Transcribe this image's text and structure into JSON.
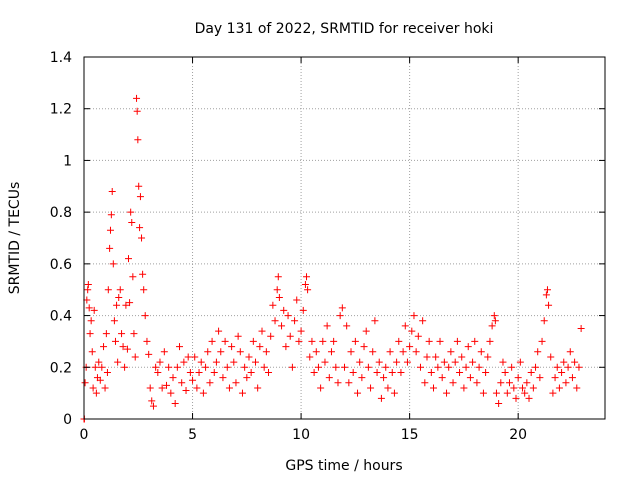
{
  "chart_data": {
    "type": "scatter",
    "title": "Day 131 of 2022, SRMTID for receiver hoki",
    "xlabel": "GPS time / hours",
    "ylabel": "SRMTID / TECUs",
    "xlim": [
      0,
      24
    ],
    "ylim": [
      0,
      1.4
    ],
    "xticks": [
      0,
      5,
      10,
      15,
      20
    ],
    "xtick_labels": [
      "0",
      "5",
      "10",
      "15",
      "20"
    ],
    "yticks": [
      0,
      0.2,
      0.4,
      0.6,
      0.8,
      1.0,
      1.2,
      1.4
    ],
    "ytick_labels": [
      "0",
      "0.2",
      "0.4",
      "0.6",
      "0.8",
      "1",
      "1.2",
      "1.4"
    ],
    "grid": true,
    "marker": "+",
    "color": "#ff0000",
    "series": [
      {
        "name": "SRMTID",
        "points": [
          [
            0.0,
            0.0
          ],
          [
            0.02,
            0.0
          ],
          [
            0.05,
            0.14
          ],
          [
            0.1,
            0.2
          ],
          [
            0.13,
            0.46
          ],
          [
            0.17,
            0.5
          ],
          [
            0.2,
            0.52
          ],
          [
            0.24,
            0.43
          ],
          [
            0.28,
            0.33
          ],
          [
            0.33,
            0.38
          ],
          [
            0.38,
            0.26
          ],
          [
            0.42,
            0.12
          ],
          [
            0.47,
            0.42
          ],
          [
            0.52,
            0.2
          ],
          [
            0.57,
            0.1
          ],
          [
            0.62,
            0.16
          ],
          [
            0.68,
            0.22
          ],
          [
            0.75,
            0.15
          ],
          [
            0.82,
            0.2
          ],
          [
            0.9,
            0.28
          ],
          [
            0.97,
            0.12
          ],
          [
            1.03,
            0.33
          ],
          [
            1.08,
            0.18
          ],
          [
            1.12,
            0.5
          ],
          [
            1.18,
            0.66
          ],
          [
            1.22,
            0.73
          ],
          [
            1.26,
            0.79
          ],
          [
            1.3,
            0.88
          ],
          [
            1.35,
            0.6
          ],
          [
            1.4,
            0.38
          ],
          [
            1.45,
            0.3
          ],
          [
            1.5,
            0.44
          ],
          [
            1.55,
            0.22
          ],
          [
            1.6,
            0.47
          ],
          [
            1.67,
            0.5
          ],
          [
            1.73,
            0.33
          ],
          [
            1.8,
            0.28
          ],
          [
            1.87,
            0.2
          ],
          [
            1.93,
            0.44
          ],
          [
            2.0,
            0.27
          ],
          [
            2.05,
            0.62
          ],
          [
            2.1,
            0.45
          ],
          [
            2.15,
            0.8
          ],
          [
            2.2,
            0.76
          ],
          [
            2.25,
            0.55
          ],
          [
            2.3,
            0.33
          ],
          [
            2.36,
            0.24
          ],
          [
            2.42,
            1.24
          ],
          [
            2.45,
            1.19
          ],
          [
            2.48,
            1.08
          ],
          [
            2.52,
            0.9
          ],
          [
            2.56,
            0.74
          ],
          [
            2.6,
            0.86
          ],
          [
            2.65,
            0.7
          ],
          [
            2.7,
            0.56
          ],
          [
            2.75,
            0.5
          ],
          [
            2.82,
            0.4
          ],
          [
            2.9,
            0.3
          ],
          [
            2.98,
            0.25
          ],
          [
            3.05,
            0.12
          ],
          [
            3.12,
            0.07
          ],
          [
            3.2,
            0.05
          ],
          [
            3.3,
            0.2
          ],
          [
            3.4,
            0.18
          ],
          [
            3.5,
            0.22
          ],
          [
            3.6,
            0.12
          ],
          [
            3.7,
            0.26
          ],
          [
            3.8,
            0.13
          ],
          [
            3.9,
            0.2
          ],
          [
            4.0,
            0.1
          ],
          [
            4.1,
            0.16
          ],
          [
            4.2,
            0.06
          ],
          [
            4.3,
            0.2
          ],
          [
            4.4,
            0.28
          ],
          [
            4.5,
            0.14
          ],
          [
            4.6,
            0.22
          ],
          [
            4.7,
            0.11
          ],
          [
            4.8,
            0.24
          ],
          [
            4.9,
            0.18
          ],
          [
            5.0,
            0.15
          ],
          [
            5.1,
            0.24
          ],
          [
            5.2,
            0.12
          ],
          [
            5.3,
            0.18
          ],
          [
            5.4,
            0.22
          ],
          [
            5.5,
            0.1
          ],
          [
            5.6,
            0.2
          ],
          [
            5.7,
            0.26
          ],
          [
            5.8,
            0.14
          ],
          [
            5.9,
            0.3
          ],
          [
            6.0,
            0.18
          ],
          [
            6.1,
            0.22
          ],
          [
            6.2,
            0.34
          ],
          [
            6.3,
            0.26
          ],
          [
            6.4,
            0.16
          ],
          [
            6.5,
            0.3
          ],
          [
            6.6,
            0.2
          ],
          [
            6.7,
            0.12
          ],
          [
            6.8,
            0.28
          ],
          [
            6.9,
            0.22
          ],
          [
            7.0,
            0.14
          ],
          [
            7.1,
            0.32
          ],
          [
            7.2,
            0.26
          ],
          [
            7.3,
            0.1
          ],
          [
            7.4,
            0.2
          ],
          [
            7.5,
            0.16
          ],
          [
            7.6,
            0.24
          ],
          [
            7.7,
            0.18
          ],
          [
            7.8,
            0.3
          ],
          [
            7.9,
            0.22
          ],
          [
            8.0,
            0.12
          ],
          [
            8.1,
            0.28
          ],
          [
            8.2,
            0.34
          ],
          [
            8.3,
            0.2
          ],
          [
            8.4,
            0.26
          ],
          [
            8.5,
            0.18
          ],
          [
            8.6,
            0.32
          ],
          [
            8.7,
            0.44
          ],
          [
            8.8,
            0.38
          ],
          [
            8.9,
            0.5
          ],
          [
            8.95,
            0.55
          ],
          [
            9.0,
            0.47
          ],
          [
            9.1,
            0.36
          ],
          [
            9.2,
            0.42
          ],
          [
            9.3,
            0.28
          ],
          [
            9.4,
            0.4
          ],
          [
            9.5,
            0.32
          ],
          [
            9.6,
            0.2
          ],
          [
            9.7,
            0.38
          ],
          [
            9.8,
            0.46
          ],
          [
            9.9,
            0.3
          ],
          [
            10.0,
            0.34
          ],
          [
            10.1,
            0.42
          ],
          [
            10.2,
            0.52
          ],
          [
            10.25,
            0.55
          ],
          [
            10.3,
            0.5
          ],
          [
            10.4,
            0.24
          ],
          [
            10.5,
            0.3
          ],
          [
            10.6,
            0.18
          ],
          [
            10.7,
            0.26
          ],
          [
            10.8,
            0.2
          ],
          [
            10.9,
            0.12
          ],
          [
            11.0,
            0.3
          ],
          [
            11.1,
            0.22
          ],
          [
            11.2,
            0.36
          ],
          [
            11.3,
            0.16
          ],
          [
            11.4,
            0.26
          ],
          [
            11.5,
            0.3
          ],
          [
            11.6,
            0.2
          ],
          [
            11.7,
            0.14
          ],
          [
            11.8,
            0.4
          ],
          [
            11.9,
            0.43
          ],
          [
            12.0,
            0.2
          ],
          [
            12.1,
            0.36
          ],
          [
            12.2,
            0.14
          ],
          [
            12.3,
            0.26
          ],
          [
            12.4,
            0.18
          ],
          [
            12.5,
            0.3
          ],
          [
            12.6,
            0.1
          ],
          [
            12.7,
            0.22
          ],
          [
            12.8,
            0.16
          ],
          [
            12.9,
            0.28
          ],
          [
            13.0,
            0.34
          ],
          [
            13.1,
            0.2
          ],
          [
            13.2,
            0.12
          ],
          [
            13.3,
            0.26
          ],
          [
            13.4,
            0.38
          ],
          [
            13.5,
            0.18
          ],
          [
            13.6,
            0.22
          ],
          [
            13.7,
            0.08
          ],
          [
            13.8,
            0.16
          ],
          [
            13.9,
            0.2
          ],
          [
            14.0,
            0.12
          ],
          [
            14.1,
            0.26
          ],
          [
            14.2,
            0.18
          ],
          [
            14.3,
            0.1
          ],
          [
            14.4,
            0.22
          ],
          [
            14.5,
            0.3
          ],
          [
            14.6,
            0.18
          ],
          [
            14.7,
            0.26
          ],
          [
            14.8,
            0.36
          ],
          [
            14.9,
            0.22
          ],
          [
            15.0,
            0.28
          ],
          [
            15.1,
            0.34
          ],
          [
            15.2,
            0.4
          ],
          [
            15.3,
            0.26
          ],
          [
            15.4,
            0.32
          ],
          [
            15.5,
            0.2
          ],
          [
            15.6,
            0.38
          ],
          [
            15.7,
            0.14
          ],
          [
            15.8,
            0.24
          ],
          [
            15.9,
            0.3
          ],
          [
            16.0,
            0.18
          ],
          [
            16.1,
            0.12
          ],
          [
            16.2,
            0.24
          ],
          [
            16.3,
            0.2
          ],
          [
            16.4,
            0.3
          ],
          [
            16.5,
            0.16
          ],
          [
            16.6,
            0.22
          ],
          [
            16.7,
            0.1
          ],
          [
            16.8,
            0.2
          ],
          [
            16.9,
            0.26
          ],
          [
            17.0,
            0.14
          ],
          [
            17.1,
            0.22
          ],
          [
            17.2,
            0.3
          ],
          [
            17.3,
            0.18
          ],
          [
            17.4,
            0.24
          ],
          [
            17.5,
            0.12
          ],
          [
            17.6,
            0.2
          ],
          [
            17.7,
            0.28
          ],
          [
            17.8,
            0.16
          ],
          [
            17.9,
            0.22
          ],
          [
            18.0,
            0.3
          ],
          [
            18.1,
            0.14
          ],
          [
            18.2,
            0.2
          ],
          [
            18.3,
            0.26
          ],
          [
            18.4,
            0.1
          ],
          [
            18.5,
            0.18
          ],
          [
            18.6,
            0.24
          ],
          [
            18.7,
            0.3
          ],
          [
            18.8,
            0.36
          ],
          [
            18.9,
            0.4
          ],
          [
            18.95,
            0.38
          ],
          [
            19.0,
            0.1
          ],
          [
            19.1,
            0.06
          ],
          [
            19.2,
            0.14
          ],
          [
            19.3,
            0.22
          ],
          [
            19.4,
            0.18
          ],
          [
            19.5,
            0.1
          ],
          [
            19.6,
            0.14
          ],
          [
            19.7,
            0.2
          ],
          [
            19.8,
            0.12
          ],
          [
            19.9,
            0.08
          ],
          [
            20.0,
            0.16
          ],
          [
            20.1,
            0.22
          ],
          [
            20.2,
            0.12
          ],
          [
            20.3,
            0.1
          ],
          [
            20.4,
            0.14
          ],
          [
            20.5,
            0.08
          ],
          [
            20.6,
            0.18
          ],
          [
            20.7,
            0.12
          ],
          [
            20.8,
            0.2
          ],
          [
            20.9,
            0.26
          ],
          [
            21.0,
            0.16
          ],
          [
            21.1,
            0.3
          ],
          [
            21.2,
            0.38
          ],
          [
            21.3,
            0.48
          ],
          [
            21.35,
            0.5
          ],
          [
            21.4,
            0.44
          ],
          [
            21.5,
            0.24
          ],
          [
            21.6,
            0.1
          ],
          [
            21.7,
            0.16
          ],
          [
            21.8,
            0.2
          ],
          [
            21.9,
            0.12
          ],
          [
            22.0,
            0.18
          ],
          [
            22.1,
            0.22
          ],
          [
            22.2,
            0.14
          ],
          [
            22.3,
            0.2
          ],
          [
            22.4,
            0.26
          ],
          [
            22.5,
            0.16
          ],
          [
            22.6,
            0.22
          ],
          [
            22.7,
            0.12
          ],
          [
            22.8,
            0.2
          ],
          [
            22.9,
            0.35
          ]
        ]
      }
    ]
  }
}
